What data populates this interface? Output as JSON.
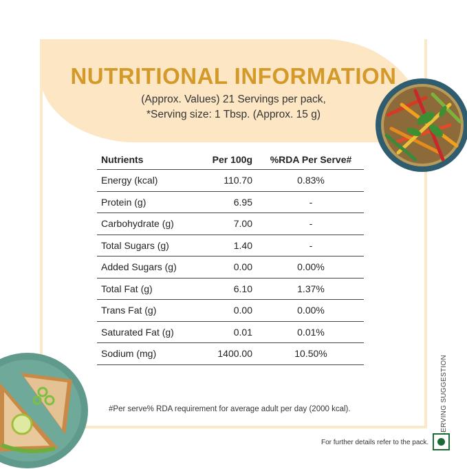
{
  "header": {
    "title": "NUTRITIONAL INFORMATION",
    "subtitle_line1": "(Approx. Values) 21 Servings per pack,",
    "subtitle_line2": "*Serving size: 1 Tbsp. (Approx. 15 g)"
  },
  "table": {
    "columns": [
      "Nutrients",
      "Per 100g",
      "%RDA Per Serve#"
    ],
    "rows": [
      [
        "Energy (kcal)",
        "110.70",
        "0.83%"
      ],
      [
        "Protein (g)",
        "6.95",
        "-"
      ],
      [
        "Carbohydrate (g)",
        "7.00",
        "-"
      ],
      [
        "Total Sugars (g)",
        "1.40",
        "-"
      ],
      [
        "Added Sugars (g)",
        "0.00",
        "0.00%"
      ],
      [
        "Total Fat (g)",
        "6.10",
        "1.37%"
      ],
      [
        "Trans Fat (g)",
        "0.00",
        "0.00%"
      ],
      [
        "Saturated Fat (g)",
        "0.01",
        "0.01%"
      ],
      [
        "Sodium (mg)",
        "1400.00",
        "10.50%"
      ]
    ]
  },
  "footnote": "#Per serve% RDA requirement for average adult per day (2000 kcal).",
  "side_label": "SERVING SUGGESTION",
  "further_details": "For further details refer to the pack.",
  "colors": {
    "title": "#d39a2a",
    "header_bg": "#fce6c4",
    "veg_mark": "#1d6b34"
  },
  "icons": {
    "veg_mark": "vegetarian-symbol"
  }
}
